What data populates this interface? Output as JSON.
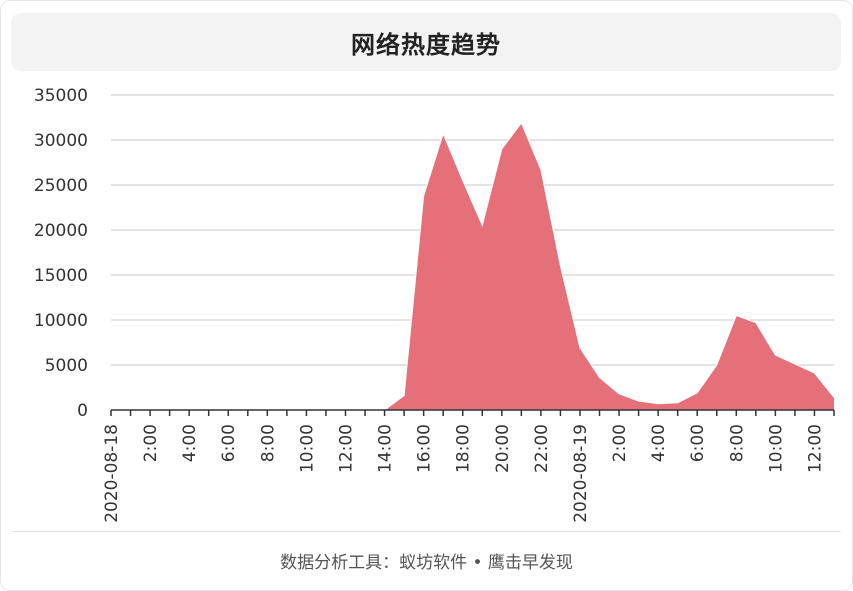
{
  "title": "网络热度趋势",
  "footer": "数据分析工具：蚁坊软件 • 鹰击早发现",
  "colors": {
    "area_fill": "#e5707a",
    "area_stroke": "#ffffff",
    "grid": "#c8c8c8",
    "axis": "#333333",
    "text": "#333333"
  },
  "chart_data": {
    "type": "area",
    "title": "网络热度趋势",
    "xlabel": "",
    "ylabel": "",
    "ylim": [
      0,
      35000
    ],
    "yticks": [
      0,
      5000,
      10000,
      15000,
      20000,
      25000,
      30000,
      35000
    ],
    "x": [
      "2020-08-18 00:00",
      "2020-08-18 01:00",
      "2020-08-18 02:00",
      "2020-08-18 03:00",
      "2020-08-18 04:00",
      "2020-08-18 05:00",
      "2020-08-18 06:00",
      "2020-08-18 07:00",
      "2020-08-18 08:00",
      "2020-08-18 09:00",
      "2020-08-18 10:00",
      "2020-08-18 11:00",
      "2020-08-18 12:00",
      "2020-08-18 13:00",
      "2020-08-18 14:00",
      "2020-08-18 15:00",
      "2020-08-18 16:00",
      "2020-08-18 17:00",
      "2020-08-18 18:00",
      "2020-08-18 19:00",
      "2020-08-18 20:00",
      "2020-08-18 21:00",
      "2020-08-18 22:00",
      "2020-08-18 23:00",
      "2020-08-19 00:00",
      "2020-08-19 01:00",
      "2020-08-19 02:00",
      "2020-08-19 03:00",
      "2020-08-19 04:00",
      "2020-08-19 05:00",
      "2020-08-19 06:00",
      "2020-08-19 07:00",
      "2020-08-19 08:00",
      "2020-08-19 09:00",
      "2020-08-19 10:00",
      "2020-08-19 11:00",
      "2020-08-19 12:00",
      "2020-08-19 13:00"
    ],
    "tick_labels": [
      {
        "x": "2020-08-18 00:00",
        "label": "2020-08-18"
      },
      {
        "x": "2020-08-18 02:00",
        "label": "2:00"
      },
      {
        "x": "2020-08-18 04:00",
        "label": "4:00"
      },
      {
        "x": "2020-08-18 06:00",
        "label": "6:00"
      },
      {
        "x": "2020-08-18 08:00",
        "label": "8:00"
      },
      {
        "x": "2020-08-18 10:00",
        "label": "10:00"
      },
      {
        "x": "2020-08-18 12:00",
        "label": "12:00"
      },
      {
        "x": "2020-08-18 14:00",
        "label": "14:00"
      },
      {
        "x": "2020-08-18 16:00",
        "label": "16:00"
      },
      {
        "x": "2020-08-18 18:00",
        "label": "18:00"
      },
      {
        "x": "2020-08-18 20:00",
        "label": "20:00"
      },
      {
        "x": "2020-08-18 22:00",
        "label": "22:00"
      },
      {
        "x": "2020-08-19 00:00",
        "label": "2020-08-19"
      },
      {
        "x": "2020-08-19 02:00",
        "label": "2:00"
      },
      {
        "x": "2020-08-19 04:00",
        "label": "4:00"
      },
      {
        "x": "2020-08-19 06:00",
        "label": "6:00"
      },
      {
        "x": "2020-08-19 08:00",
        "label": "8:00"
      },
      {
        "x": "2020-08-19 10:00",
        "label": "10:00"
      },
      {
        "x": "2020-08-19 12:00",
        "label": "12:00"
      }
    ],
    "series": [
      {
        "values": [
          0,
          0,
          0,
          0,
          0,
          0,
          0,
          0,
          0,
          0,
          0,
          0,
          0,
          0,
          0,
          1600,
          23800,
          30700,
          25500,
          20500,
          29000,
          31900,
          26700,
          16000,
          6900,
          3600,
          1800,
          1000,
          700,
          800,
          1900,
          5000,
          10500,
          9700,
          6100,
          5100,
          4100,
          1400
        ]
      }
    ],
    "grid": true,
    "legend": "none"
  }
}
